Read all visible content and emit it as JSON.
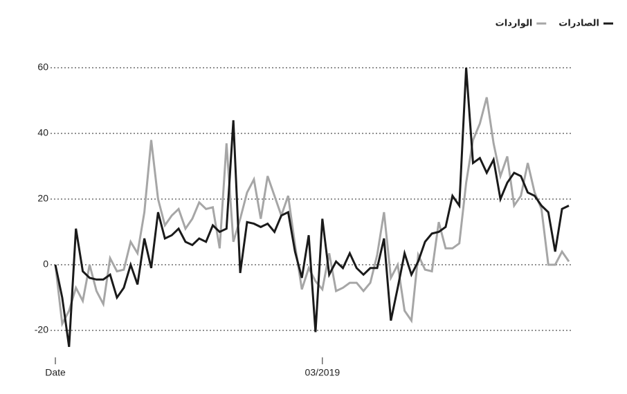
{
  "chart_data": {
    "type": "line",
    "categories": [
      "Date",
      null,
      null,
      null,
      null,
      null,
      null,
      null,
      null,
      null,
      null,
      null,
      null,
      null,
      null,
      null,
      null,
      null,
      null,
      null,
      null,
      null,
      null,
      null,
      null,
      null,
      null,
      null,
      null,
      null,
      null,
      null,
      null,
      null,
      null,
      null,
      null,
      null,
      null,
      "03/2019",
      null,
      null,
      null,
      null,
      null,
      null,
      null,
      null,
      null,
      null,
      null,
      null,
      null,
      null,
      null,
      null,
      null,
      null,
      null,
      null,
      null,
      null,
      null,
      null,
      null,
      null,
      null,
      null,
      null,
      null,
      null,
      null,
      null,
      null,
      null,
      null
    ],
    "series": [
      {
        "name": "الصادرات",
        "color": "#1a1a1a",
        "values": [
          0,
          -10,
          -25,
          11,
          -2,
          -4,
          -4.5,
          -4.5,
          -3,
          -10,
          -7,
          0,
          -6,
          8,
          -1,
          16,
          8,
          9,
          11,
          7,
          6,
          8,
          7,
          12,
          10,
          11,
          44,
          -2.5,
          13,
          12.5,
          11.5,
          12.5,
          10,
          15,
          16,
          4,
          -4,
          9,
          -20.5,
          14,
          -3,
          1,
          -1,
          3.5,
          -1,
          -3,
          -1,
          -1,
          8,
          -17,
          -7,
          3.5,
          -3,
          1,
          7,
          9.5,
          10,
          11.5,
          21,
          18,
          60,
          31,
          32.5,
          28,
          32,
          20,
          25,
          28,
          27,
          22,
          21,
          18,
          16,
          4,
          17,
          18
        ]
      },
      {
        "name": "الواردات",
        "color": "#a6a6a6",
        "values": [
          0,
          -18,
          -14,
          -7,
          -11,
          0,
          -8,
          -12,
          2,
          -2,
          -1.5,
          7,
          3.5,
          16,
          38,
          20,
          12,
          15,
          17,
          11,
          14,
          19,
          17,
          17.5,
          5,
          37,
          7,
          14,
          22,
          26,
          14,
          27,
          21,
          15,
          21,
          6,
          -7.5,
          -1,
          -5,
          -7.5,
          3.5,
          -8,
          -7,
          -5.5,
          -5.5,
          -8,
          -5.5,
          3,
          16,
          -4,
          0,
          -14,
          -17,
          3,
          -1.5,
          -2,
          13,
          5,
          5,
          6.5,
          25,
          38,
          43,
          51,
          37,
          27,
          33,
          18,
          21,
          31,
          22,
          17,
          0,
          0,
          4,
          1
        ]
      }
    ],
    "ylim": [
      -28,
      62
    ],
    "yticks": [
      -20,
      0,
      20,
      40,
      60
    ],
    "grid": true,
    "legend": "top-right"
  }
}
